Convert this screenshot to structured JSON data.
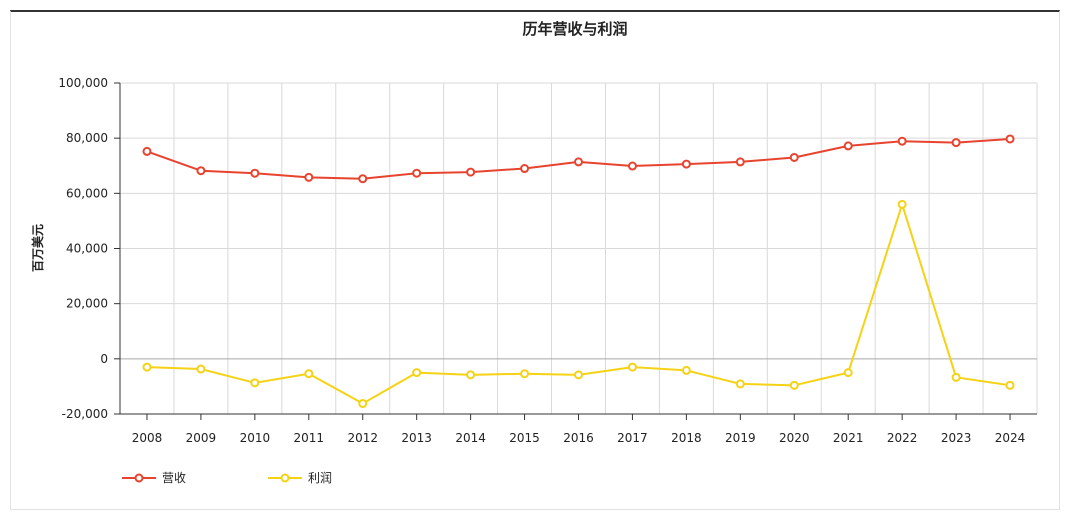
{
  "chart_data": {
    "type": "line",
    "title": "历年营收与利润",
    "xlabel": "",
    "ylabel": "百万美元",
    "categories": [
      "2008",
      "2009",
      "2010",
      "2011",
      "2012",
      "2013",
      "2014",
      "2015",
      "2016",
      "2017",
      "2018",
      "2019",
      "2020",
      "2021",
      "2022",
      "2023",
      "2024"
    ],
    "ylim": [
      -20000,
      100000
    ],
    "yticks": [
      -20000,
      0,
      20000,
      40000,
      60000,
      80000,
      100000
    ],
    "ytick_labels": [
      "-20,000",
      "0",
      "20,000",
      "40,000",
      "60,000",
      "80,000",
      "100,000"
    ],
    "series": [
      {
        "name": "营收",
        "color": "#e8432e",
        "values": [
          75200,
          68200,
          67300,
          65800,
          65300,
          67300,
          67700,
          69000,
          71400,
          69900,
          70600,
          71400,
          73000,
          77200,
          78900,
          78400,
          79700
        ]
      },
      {
        "name": "利润",
        "color": "#f5d214",
        "values": [
          -3000,
          -3700,
          -8700,
          -5400,
          -16200,
          -5000,
          -5800,
          -5400,
          -5800,
          -3000,
          -4200,
          -9100,
          -9600,
          -5000,
          56000,
          -6700,
          -9600
        ]
      }
    ],
    "grid": true,
    "legend_position": "bottom-left"
  }
}
